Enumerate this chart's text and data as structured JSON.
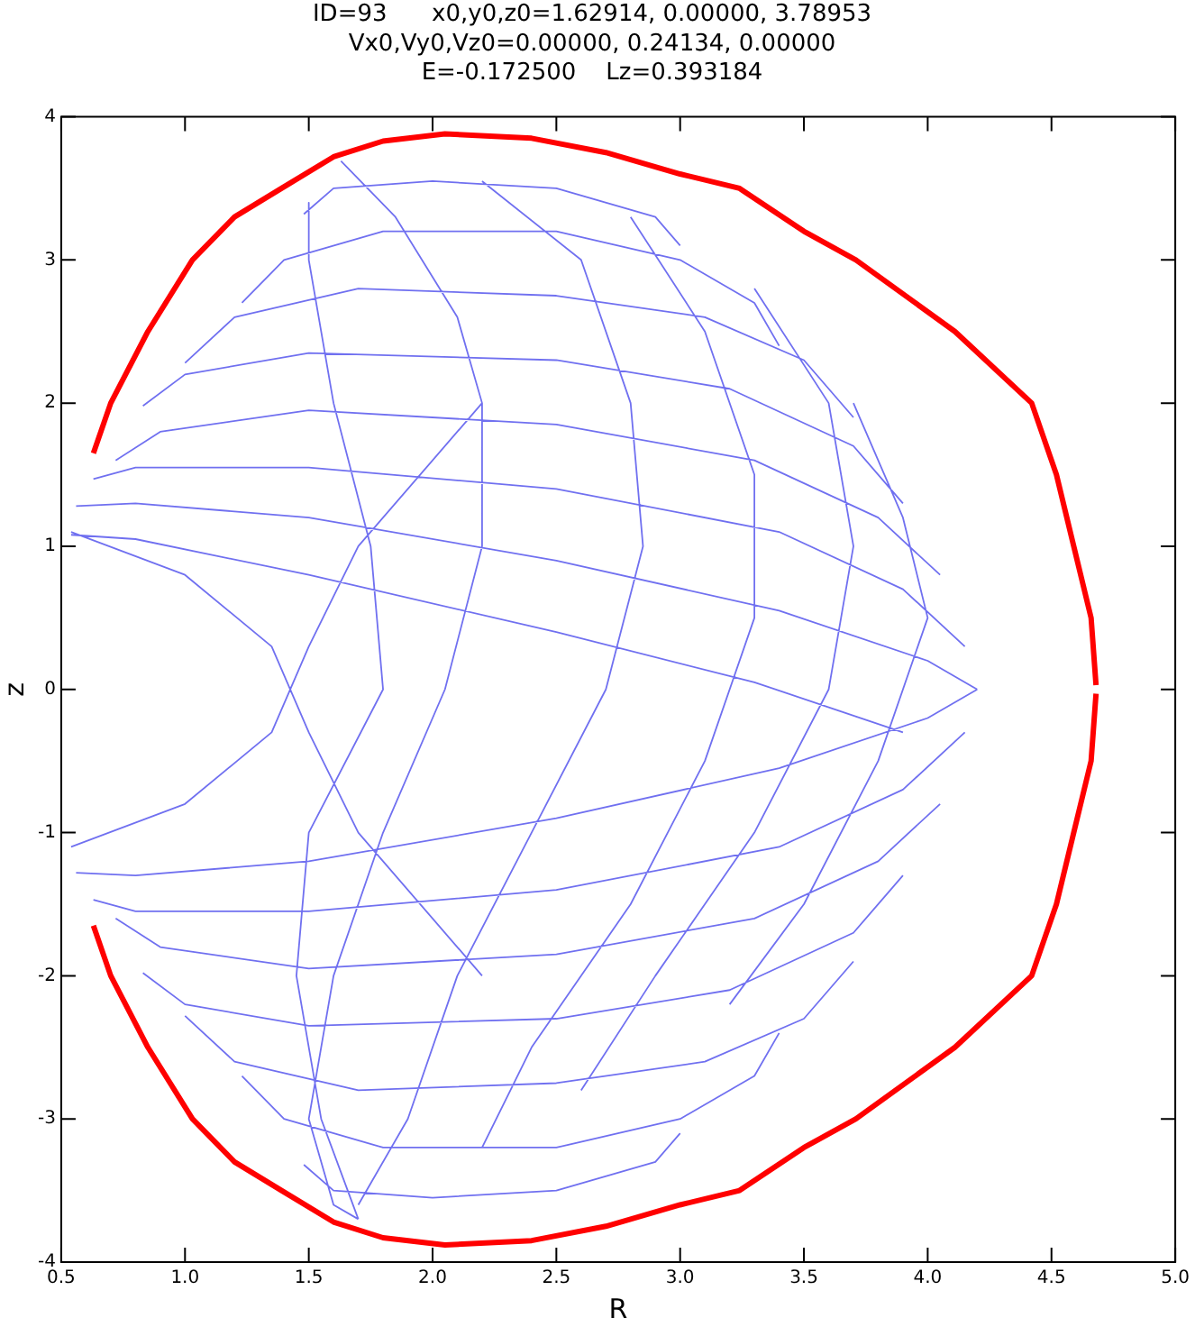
{
  "chart_data": {
    "type": "line",
    "title": "ID=93      x0,y0,z0=1.62914, 0.00000, 3.78953\nVx0,Vy0,Vz0=0.00000, 0.24134, 0.00000\nE=-0.172500    Lz=0.393184",
    "xlabel": "R",
    "ylabel": "z",
    "xlim": [
      0.5,
      5.0
    ],
    "xticks": [
      0.5,
      {
        "value": 1,
        "label": "1.0"
      },
      1.5,
      {
        "value": 2,
        "label": "2.0"
      },
      2.5,
      {
        "value": 3,
        "label": "3.0"
      },
      3.5,
      {
        "value": 4,
        "label": "4.0"
      },
      4.5,
      {
        "value": 5,
        "label": "5.0"
      }
    ],
    "ylim": [
      -4,
      4
    ],
    "yticks": [
      -4,
      -3,
      -2,
      -1,
      0,
      1,
      2,
      3,
      4
    ],
    "grid": false,
    "legend": false,
    "marker": "none",
    "line_style": "solid",
    "series": [
      {
        "color": "#ff0000",
        "x": [
          0.63,
          0.7,
          0.85,
          1.03,
          1.2,
          1.39,
          1.6,
          1.8,
          2.05,
          2.4,
          2.7,
          3.0,
          3.24,
          3.5,
          3.71,
          4.11,
          4.42,
          4.52,
          4.59,
          4.66,
          4.68
        ],
        "values": [
          1.65,
          2.0,
          2.5,
          3.0,
          3.3,
          3.5,
          3.72,
          3.83,
          3.88,
          3.85,
          3.75,
          3.6,
          3.5,
          3.2,
          3.0,
          2.5,
          2.0,
          1.5,
          1.0,
          0.5,
          0.03
        ]
      },
      {
        "color": "#ff0000",
        "x": [
          0.63,
          0.7,
          0.85,
          1.03,
          1.2,
          1.39,
          1.6,
          1.8,
          2.05,
          2.4,
          2.7,
          3.0,
          3.24,
          3.5,
          3.71,
          4.11,
          4.42,
          4.52,
          4.59,
          4.66,
          4.68
        ],
        "values": [
          -1.65,
          -2.0,
          -2.5,
          -3.0,
          -3.3,
          -3.5,
          -3.72,
          -3.83,
          -3.88,
          -3.85,
          -3.75,
          -3.6,
          -3.5,
          -3.2,
          -3.0,
          -2.5,
          -2.0,
          -1.5,
          -1.0,
          -0.5,
          -0.03
        ]
      },
      {
        "color": "#7070f0",
        "x": [
          1.48,
          1.6,
          2.0,
          2.5,
          2.9,
          3.0,
          null,
          1.23,
          1.4,
          1.8,
          2.5,
          3.0,
          3.3,
          3.4,
          null,
          1.0,
          1.2,
          1.7,
          2.5,
          3.1,
          3.5,
          3.7,
          null,
          0.83,
          1.0,
          1.5,
          2.5,
          3.2,
          3.7,
          3.9,
          null,
          0.72,
          0.9,
          1.5,
          2.5,
          3.3,
          3.8,
          4.05,
          null,
          0.63,
          0.8,
          1.5,
          2.5,
          3.4,
          3.9,
          4.15,
          null,
          0.56,
          0.8,
          1.5,
          2.5,
          3.4,
          4.0,
          4.2,
          null,
          0.54,
          0.8,
          1.5,
          2.5,
          3.3,
          3.9,
          null,
          1.48,
          1.6,
          2.0,
          2.5,
          2.9,
          3.0,
          null,
          1.23,
          1.4,
          1.8,
          2.5,
          3.0,
          3.3,
          3.4,
          null,
          1.0,
          1.2,
          1.7,
          2.5,
          3.1,
          3.5,
          3.7,
          null,
          0.83,
          1.0,
          1.5,
          2.5,
          3.2,
          3.7,
          3.9,
          null,
          0.72,
          0.9,
          1.5,
          2.5,
          3.3,
          3.8,
          4.05,
          null,
          0.63,
          0.8,
          1.5,
          2.5,
          3.4,
          3.9,
          4.15,
          null,
          0.56,
          0.8,
          1.5,
          2.5,
          3.4,
          4.0,
          4.2,
          null,
          0.54,
          1.0,
          1.35,
          1.5,
          1.7,
          2.2,
          null,
          0.54,
          1.0,
          1.35,
          1.5,
          1.7,
          2.2,
          null,
          1.63,
          1.85,
          2.1,
          2.2,
          2.2,
          2.05,
          1.8,
          1.6,
          1.5,
          1.6,
          1.7,
          null,
          1.5,
          1.5,
          1.6,
          1.75,
          1.8,
          1.5,
          1.45,
          1.55,
          1.7,
          null,
          2.2,
          2.6,
          2.8,
          2.85,
          2.7,
          2.4,
          2.1,
          1.9,
          1.7,
          null,
          2.8,
          3.1,
          3.3,
          3.3,
          3.1,
          2.8,
          2.4,
          2.2,
          null,
          3.3,
          3.6,
          3.7,
          3.6,
          3.3,
          2.9,
          2.6,
          null,
          3.7,
          3.9,
          4.0,
          3.8,
          3.5,
          3.2
        ],
        "values": [
          3.32,
          3.5,
          3.55,
          3.5,
          3.3,
          3.1,
          null,
          2.7,
          3.0,
          3.2,
          3.2,
          3.0,
          2.7,
          2.4,
          null,
          2.28,
          2.6,
          2.8,
          2.75,
          2.6,
          2.3,
          1.9,
          null,
          1.98,
          2.2,
          2.35,
          2.3,
          2.1,
          1.7,
          1.3,
          null,
          1.6,
          1.8,
          1.95,
          1.85,
          1.6,
          1.2,
          0.8,
          null,
          1.47,
          1.55,
          1.55,
          1.4,
          1.1,
          0.7,
          0.3,
          null,
          1.28,
          1.3,
          1.2,
          0.9,
          0.55,
          0.2,
          0.0,
          null,
          1.08,
          1.05,
          0.8,
          0.4,
          0.05,
          -0.3,
          null,
          -3.32,
          -3.5,
          -3.55,
          -3.5,
          -3.3,
          -3.1,
          null,
          -2.7,
          -3.0,
          -3.2,
          -3.2,
          -3.0,
          -2.7,
          -2.4,
          null,
          -2.28,
          -2.6,
          -2.8,
          -2.75,
          -2.6,
          -2.3,
          -1.9,
          null,
          -1.98,
          -2.2,
          -2.35,
          -2.3,
          -2.1,
          -1.7,
          -1.3,
          null,
          -1.6,
          -1.8,
          -1.95,
          -1.85,
          -1.6,
          -1.2,
          -0.8,
          null,
          -1.47,
          -1.55,
          -1.55,
          -1.4,
          -1.1,
          -0.7,
          -0.3,
          null,
          -1.28,
          -1.3,
          -1.2,
          -0.9,
          -0.55,
          -0.2,
          0.0,
          null,
          1.1,
          0.8,
          0.3,
          -0.3,
          -1.0,
          -2.0,
          null,
          -1.1,
          -0.8,
          -0.3,
          0.3,
          1.0,
          2.0,
          null,
          3.69,
          3.3,
          2.6,
          2.0,
          1.0,
          0.0,
          -1.0,
          -2.0,
          -3.0,
          -3.6,
          -3.7,
          null,
          3.4,
          3.0,
          2.0,
          1.0,
          0.0,
          -1.0,
          -2.0,
          -3.0,
          -3.7,
          null,
          3.55,
          3.0,
          2.0,
          1.0,
          0.0,
          -1.0,
          -2.0,
          -3.0,
          -3.6,
          null,
          3.3,
          2.5,
          1.5,
          0.5,
          -0.5,
          -1.5,
          -2.5,
          -3.2,
          null,
          2.8,
          2.0,
          1.0,
          0.0,
          -1.0,
          -2.0,
          -2.8,
          null,
          2.0,
          1.2,
          0.5,
          -0.5,
          -1.5,
          -2.2
        ]
      }
    ]
  }
}
